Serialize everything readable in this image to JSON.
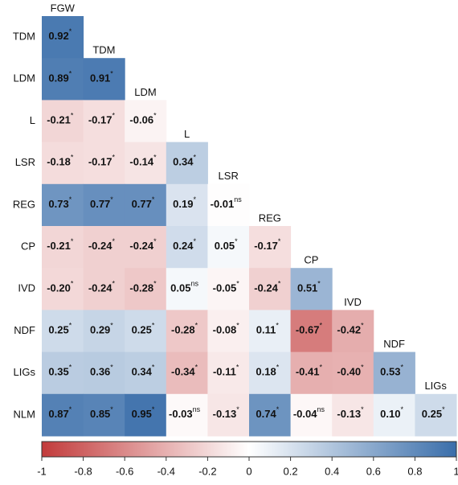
{
  "chart_data": {
    "type": "heatmap",
    "row_labels": [
      "TDM",
      "LDM",
      "L",
      "LSR",
      "REG",
      "CP",
      "IVD",
      "NDF",
      "LIGs",
      "NLM"
    ],
    "col_labels": [
      "FGW",
      "TDM",
      "LDM",
      "L",
      "LSR",
      "REG",
      "CP",
      "IVD",
      "NDF",
      "LIGs"
    ],
    "values": [
      [
        0.92
      ],
      [
        0.89,
        0.91
      ],
      [
        -0.21,
        -0.17,
        -0.06
      ],
      [
        -0.18,
        -0.17,
        -0.14,
        0.34
      ],
      [
        0.73,
        0.77,
        0.77,
        0.19,
        -0.01
      ],
      [
        -0.21,
        -0.24,
        -0.24,
        0.24,
        0.05,
        -0.17
      ],
      [
        -0.2,
        -0.24,
        -0.28,
        0.05,
        -0.05,
        -0.24,
        0.51
      ],
      [
        0.25,
        0.29,
        0.25,
        -0.28,
        -0.08,
        0.11,
        -0.67,
        -0.42
      ],
      [
        0.35,
        0.36,
        0.34,
        -0.34,
        -0.11,
        0.18,
        -0.41,
        -0.4,
        0.53
      ],
      [
        0.87,
        0.85,
        0.95,
        -0.03,
        -0.13,
        0.74,
        -0.04,
        -0.13,
        0.1,
        0.25
      ]
    ],
    "value_labels": [
      [
        "0.92"
      ],
      [
        "0.89",
        "0.91"
      ],
      [
        "-0.21",
        "-0.17",
        "-0.06"
      ],
      [
        "-0.18",
        "-0.17",
        "-0.14",
        "0.34"
      ],
      [
        "0.73",
        "0.77",
        "0.77",
        "0.19",
        "-0.01"
      ],
      [
        "-0.21",
        "-0.24",
        "-0.24",
        "0.24",
        "0.05",
        "-0.17"
      ],
      [
        "-0.20",
        "-0.24",
        "-0.28",
        "0.05",
        "-0.05",
        "-0.24",
        "0.51"
      ],
      [
        "0.25",
        "0.29",
        "0.25",
        "-0.28",
        "-0.08",
        "0.11",
        "-0.67",
        "-0.42"
      ],
      [
        "0.35",
        "0.36",
        "0.34",
        "-0.34",
        "-0.11",
        "0.18",
        "-0.41",
        "-0.40",
        "0.53"
      ],
      [
        "0.87",
        "0.85",
        "0.95",
        "-0.03",
        "-0.13",
        "0.74",
        "-0.04",
        "-0.13",
        "0.10",
        "0.25"
      ]
    ],
    "significance": [
      [
        "*"
      ],
      [
        "*",
        "*"
      ],
      [
        "*",
        "*",
        "*"
      ],
      [
        "*",
        "*",
        "*",
        "*"
      ],
      [
        "*",
        "*",
        "*",
        "*",
        "ns"
      ],
      [
        "*",
        "*",
        "*",
        "*",
        "*",
        "*"
      ],
      [
        "*",
        "*",
        "*",
        "ns",
        "*",
        "*",
        "*"
      ],
      [
        "*",
        "*",
        "*",
        "*",
        "*",
        "*",
        "*",
        "*"
      ],
      [
        "*",
        "*",
        "*",
        "*",
        "*",
        "*",
        "*",
        "*",
        "*"
      ],
      [
        "*",
        "*",
        "*",
        "ns",
        "*",
        "*",
        "ns",
        "*",
        "*",
        "*"
      ]
    ],
    "clim": [
      -1,
      1
    ],
    "cticks": [
      -1,
      -0.8,
      -0.6,
      -0.4,
      -0.2,
      0,
      0.2,
      0.4,
      0.6,
      0.8,
      1
    ],
    "colors": [
      "#c23b3b",
      "#ffffff",
      "#3a6eaa"
    ]
  }
}
